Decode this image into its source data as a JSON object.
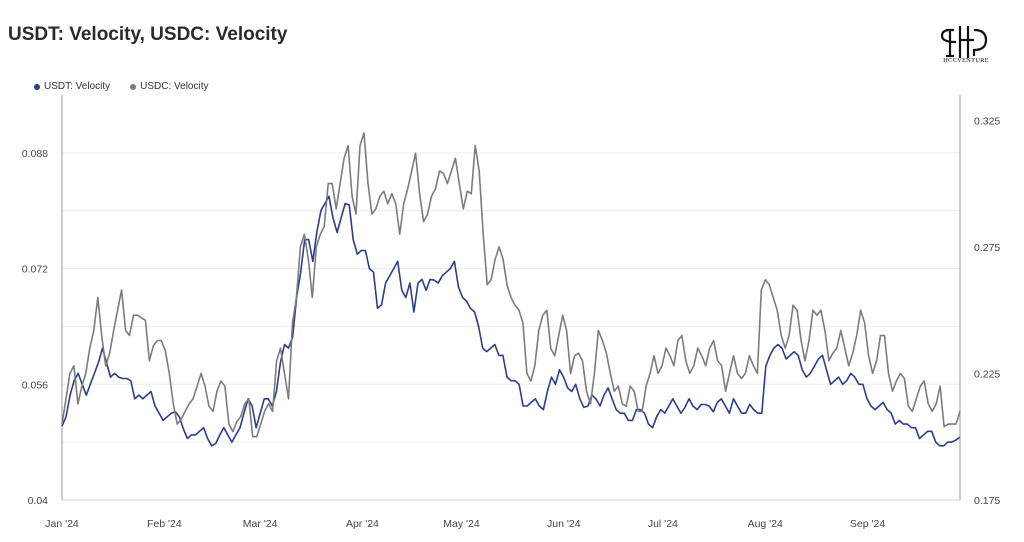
{
  "chart_data": {
    "type": "line",
    "title": "USDT: Velocity, USDC: Velocity",
    "series": [
      {
        "name": "USDT: Velocity",
        "axis": "left",
        "color": "#2b3d8f",
        "values": [
          0.0502,
          0.0515,
          0.0545,
          0.0565,
          0.0575,
          0.056,
          0.0545,
          0.056,
          0.0575,
          0.059,
          0.061,
          0.059,
          0.057,
          0.0575,
          0.057,
          0.0568,
          0.0568,
          0.0565,
          0.054,
          0.0545,
          0.054,
          0.0545,
          0.055,
          0.053,
          0.052,
          0.051,
          0.0515,
          0.052,
          0.0522,
          0.0515,
          0.0498,
          0.0485,
          0.049,
          0.049,
          0.0495,
          0.05,
          0.0485,
          0.0475,
          0.0478,
          0.049,
          0.05,
          0.049,
          0.048,
          0.049,
          0.05,
          0.052,
          0.054,
          0.053,
          0.05,
          0.052,
          0.054,
          0.054,
          0.053,
          0.055,
          0.059,
          0.0615,
          0.061,
          0.0625,
          0.068,
          0.0715,
          0.076,
          0.076,
          0.073,
          0.077,
          0.08,
          0.081,
          0.082,
          0.079,
          0.077,
          0.079,
          0.081,
          0.0808,
          0.076,
          0.074,
          0.0745,
          0.0745,
          0.072,
          0.0715,
          0.0665,
          0.067,
          0.07,
          0.071,
          0.072,
          0.073,
          0.069,
          0.068,
          0.07,
          0.066,
          0.07,
          0.0705,
          0.069,
          0.0705,
          0.0704,
          0.07,
          0.071,
          0.0715,
          0.072,
          0.073,
          0.0695,
          0.068,
          0.0675,
          0.0665,
          0.066,
          0.064,
          0.061,
          0.0605,
          0.061,
          0.0615,
          0.06,
          0.06,
          0.057,
          0.0565,
          0.0565,
          0.056,
          0.053,
          0.053,
          0.0535,
          0.054,
          0.053,
          0.0525,
          0.055,
          0.057,
          0.056,
          0.058,
          0.057,
          0.0555,
          0.055,
          0.056,
          0.054,
          0.0528,
          0.053,
          0.0545,
          0.054,
          0.053,
          0.0545,
          0.0555,
          0.054,
          0.0525,
          0.052,
          0.052,
          0.051,
          0.051,
          0.0525,
          0.0525,
          0.052,
          0.0505,
          0.05,
          0.0515,
          0.0525,
          0.052,
          0.053,
          0.054,
          0.053,
          0.052,
          0.0528,
          0.054,
          0.053,
          0.0525,
          0.0532,
          0.0532,
          0.053,
          0.0522,
          0.0535,
          0.054,
          0.053,
          0.052,
          0.054,
          0.053,
          0.052,
          0.052,
          0.0532,
          0.0525,
          0.052,
          0.052,
          0.0585,
          0.06,
          0.061,
          0.0615,
          0.061,
          0.0595,
          0.06,
          0.0605,
          0.06,
          0.058,
          0.057,
          0.0575,
          0.0585,
          0.0595,
          0.06,
          0.058,
          0.056,
          0.0565,
          0.057,
          0.056,
          0.0565,
          0.0575,
          0.057,
          0.056,
          0.056,
          0.054,
          0.053,
          0.0525,
          0.053,
          0.0535,
          0.0525,
          0.052,
          0.0505,
          0.051,
          0.0505,
          0.0505,
          0.05,
          0.05,
          0.0485,
          0.049,
          0.0495,
          0.0495,
          0.048,
          0.0475,
          0.0475,
          0.048,
          0.048,
          0.0483,
          0.0487
        ]
      },
      {
        "name": "USDC: Velocity",
        "axis": "right",
        "color": "#7a7c82",
        "values": [
          0.205,
          0.215,
          0.225,
          0.228,
          0.213,
          0.22,
          0.225,
          0.235,
          0.242,
          0.255,
          0.24,
          0.228,
          0.233,
          0.242,
          0.25,
          0.258,
          0.242,
          0.24,
          0.248,
          0.248,
          0.247,
          0.246,
          0.23,
          0.236,
          0.238,
          0.238,
          0.234,
          0.225,
          0.213,
          0.205,
          0.207,
          0.21,
          0.213,
          0.215,
          0.22,
          0.225,
          0.22,
          0.212,
          0.21,
          0.218,
          0.222,
          0.22,
          0.205,
          0.202,
          0.206,
          0.208,
          0.213,
          0.215,
          0.2,
          0.2,
          0.205,
          0.21,
          0.213,
          0.21,
          0.23,
          0.235,
          0.225,
          0.215,
          0.245,
          0.255,
          0.275,
          0.28,
          0.27,
          0.255,
          0.275,
          0.28,
          0.283,
          0.3,
          0.3,
          0.29,
          0.3,
          0.31,
          0.315,
          0.295,
          0.288,
          0.315,
          0.32,
          0.3,
          0.288,
          0.29,
          0.295,
          0.297,
          0.292,
          0.296,
          0.292,
          0.28,
          0.292,
          0.298,
          0.305,
          0.312,
          0.296,
          0.285,
          0.288,
          0.295,
          0.298,
          0.305,
          0.304,
          0.3,
          0.305,
          0.31,
          0.3,
          0.29,
          0.297,
          0.296,
          0.315,
          0.305,
          0.28,
          0.26,
          0.262,
          0.27,
          0.275,
          0.27,
          0.26,
          0.255,
          0.252,
          0.25,
          0.245,
          0.225,
          0.222,
          0.228,
          0.242,
          0.248,
          0.25,
          0.235,
          0.232,
          0.24,
          0.248,
          0.242,
          0.225,
          0.232,
          0.233,
          0.23,
          0.218,
          0.213,
          0.225,
          0.242,
          0.238,
          0.233,
          0.225,
          0.218,
          0.22,
          0.213,
          0.212,
          0.22,
          0.218,
          0.21,
          0.21,
          0.22,
          0.225,
          0.232,
          0.225,
          0.228,
          0.235,
          0.232,
          0.228,
          0.238,
          0.24,
          0.23,
          0.225,
          0.228,
          0.235,
          0.232,
          0.228,
          0.235,
          0.238,
          0.23,
          0.228,
          0.218,
          0.225,
          0.232,
          0.225,
          0.223,
          0.225,
          0.232,
          0.228,
          0.225,
          0.258,
          0.262,
          0.26,
          0.255,
          0.25,
          0.24,
          0.235,
          0.24,
          0.252,
          0.25,
          0.238,
          0.23,
          0.238,
          0.25,
          0.248,
          0.25,
          0.242,
          0.23,
          0.233,
          0.235,
          0.242,
          0.235,
          0.228,
          0.233,
          0.24,
          0.25,
          0.245,
          0.232,
          0.225,
          0.23,
          0.24,
          0.24,
          0.225,
          0.218,
          0.222,
          0.225,
          0.223,
          0.212,
          0.21,
          0.215,
          0.22,
          0.222,
          0.213,
          0.21,
          0.213,
          0.22,
          0.204,
          0.205,
          0.205,
          0.205,
          0.21
        ]
      }
    ],
    "x_range": [
      "2024-01-01",
      "2024-09-29"
    ],
    "x_ticks": [
      "Jan '24",
      "Feb '24",
      "Mar '24",
      "Apr '24",
      "May '24",
      "Jun '24",
      "Jul '24",
      "Aug '24",
      "Sep '24"
    ],
    "y_left": {
      "ticks": [
        "0.04",
        "0.056",
        "0.072",
        "0.088"
      ],
      "range": [
        0.04,
        0.096
      ]
    },
    "y_right": {
      "ticks": [
        "0.175",
        "0.225",
        "0.275",
        "0.325"
      ],
      "range": [
        0.175,
        0.335
      ]
    },
    "grid": true,
    "legend_position": "top-left"
  },
  "logo": {
    "text": "HCCVENTURE"
  }
}
